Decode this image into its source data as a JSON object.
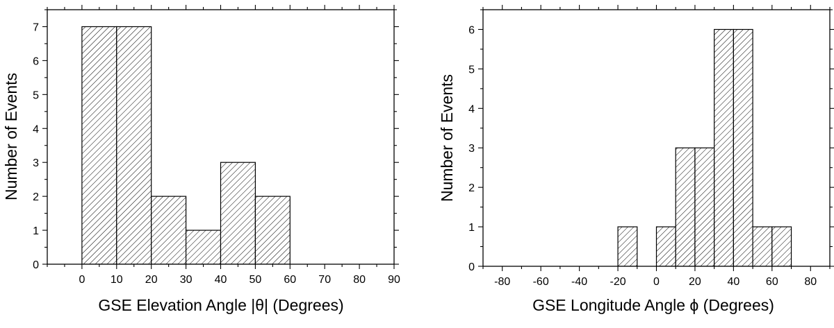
{
  "chart_data": [
    {
      "type": "bar",
      "xlabel": "GSE Elevation Angle |θ| (Degrees)",
      "ylabel": "Number of Events",
      "xlim": [
        -10,
        90
      ],
      "ylim": [
        0,
        7.5
      ],
      "xticks": [
        0,
        10,
        20,
        30,
        40,
        50,
        60,
        70,
        80,
        90
      ],
      "xtick_labels": [
        "0",
        "10",
        "20",
        "30",
        "40",
        "50",
        "60",
        "70",
        "80",
        "90"
      ],
      "yticks": [
        0,
        1,
        2,
        3,
        4,
        5,
        6,
        7
      ],
      "ytick_labels": [
        "0",
        "1",
        "2",
        "3",
        "4",
        "5",
        "6",
        "7"
      ],
      "bin_width": 10,
      "bins": [
        {
          "x0": 0,
          "x1": 10,
          "value": 7
        },
        {
          "x0": 10,
          "x1": 20,
          "value": 7
        },
        {
          "x0": 20,
          "x1": 30,
          "value": 2
        },
        {
          "x0": 30,
          "x1": 40,
          "value": 1
        },
        {
          "x0": 40,
          "x1": 50,
          "value": 3
        },
        {
          "x0": 50,
          "x1": 60,
          "value": 2
        }
      ],
      "grid": false,
      "fill": "diagonal-hatch"
    },
    {
      "type": "bar",
      "xlabel": "GSE Longitude Angle ϕ (Degrees)",
      "ylabel": "Number of Events",
      "xlim": [
        -90,
        90
      ],
      "ylim": [
        0,
        6.5
      ],
      "xticks": [
        -80,
        -60,
        -40,
        -20,
        0,
        20,
        40,
        60,
        80
      ],
      "xtick_labels": [
        "-80",
        "-60",
        "-40",
        "-20",
        "0",
        "20",
        "40",
        "60",
        "80"
      ],
      "yticks": [
        0,
        1,
        2,
        3,
        4,
        5,
        6
      ],
      "ytick_labels": [
        "0",
        "1",
        "2",
        "3",
        "4",
        "5",
        "6"
      ],
      "bin_width": 10,
      "bins": [
        {
          "x0": -20,
          "x1": -10,
          "value": 1
        },
        {
          "x0": 0,
          "x1": 10,
          "value": 1
        },
        {
          "x0": 10,
          "x1": 20,
          "value": 3
        },
        {
          "x0": 20,
          "x1": 30,
          "value": 3
        },
        {
          "x0": 30,
          "x1": 40,
          "value": 6
        },
        {
          "x0": 40,
          "x1": 50,
          "value": 6
        },
        {
          "x0": 50,
          "x1": 60,
          "value": 1
        },
        {
          "x0": 60,
          "x1": 70,
          "value": 1
        }
      ],
      "grid": false,
      "fill": "diagonal-hatch"
    }
  ]
}
